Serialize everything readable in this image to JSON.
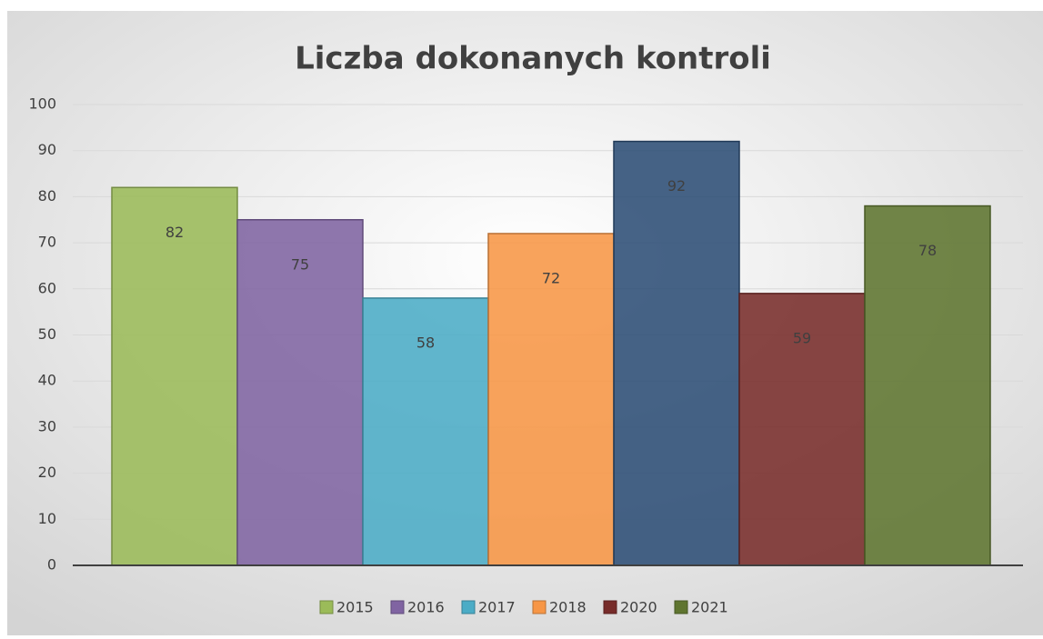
{
  "chart_data": {
    "type": "bar",
    "title": "Liczba dokonanych kontroli",
    "series": [
      {
        "name": "2015",
        "color": "#9bbb59",
        "values": [
          82
        ]
      },
      {
        "name": "2016",
        "color": "#8064a2",
        "values": [
          75
        ]
      },
      {
        "name": "2017",
        "color": "#4bacc6",
        "values": [
          58
        ]
      },
      {
        "name": "2018",
        "color": "#f79646",
        "values": [
          72
        ]
      },
      {
        "name": null,
        "color": "#2c4d75",
        "values": [
          92
        ]
      },
      {
        "name": "2020",
        "color": "#772c2a",
        "values": [
          59
        ]
      },
      {
        "name": "2021",
        "color": "#5f7530",
        "values": [
          78
        ]
      }
    ],
    "ylim": [
      0,
      100
    ],
    "yticks": [
      0,
      10,
      20,
      30,
      40,
      50,
      60,
      70,
      80,
      90,
      100
    ],
    "grid": true,
    "legend": "bottom"
  }
}
